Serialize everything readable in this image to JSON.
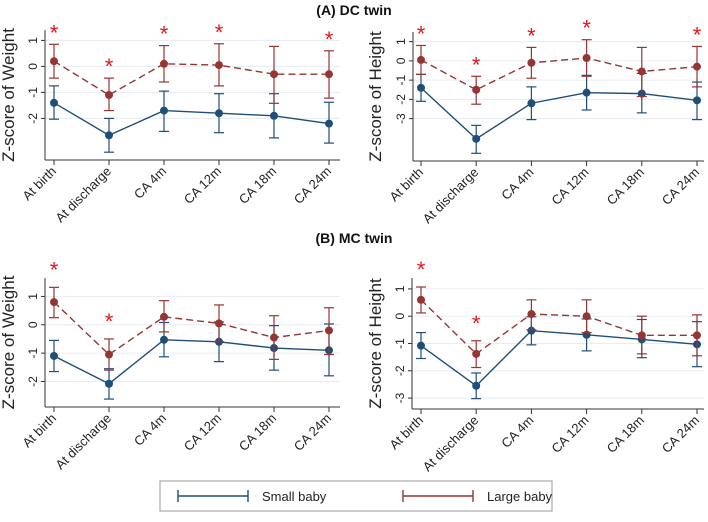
{
  "colors": {
    "small": "#1f4e79",
    "large": "#943634",
    "star": "#e8141b",
    "grid": "#e6ecf2"
  },
  "legend": [
    {
      "name": "Small baby",
      "style": "solid"
    },
    {
      "name": "Large baby",
      "style": "dashed"
    }
  ],
  "sections": [
    {
      "title": "(A) DC twin"
    },
    {
      "title": "(B) MC twin"
    }
  ],
  "chart_data": [
    {
      "type": "line",
      "section": "(A) DC twin",
      "ylabel": "Z-score of Weight",
      "ylim": [
        -3.6,
        1.4
      ],
      "yticks": [
        1,
        0,
        -1,
        -2
      ],
      "grid": true,
      "categories": [
        "At birth",
        "At discharge",
        "CA 4m",
        "CA 12m",
        "CA 18m",
        "CA 24m"
      ],
      "series": [
        {
          "name": "Small baby",
          "values": [
            -1.4,
            -2.65,
            -1.7,
            -1.8,
            -1.9,
            -2.2
          ],
          "ci_low": [
            -2.03,
            -3.3,
            -2.5,
            -2.55,
            -2.75,
            -2.95
          ],
          "ci_high": [
            -0.75,
            -2.0,
            -0.95,
            -1.05,
            -1.05,
            -1.38
          ]
        },
        {
          "name": "Large baby",
          "values": [
            0.2,
            -1.1,
            0.1,
            0.05,
            -0.3,
            -0.3
          ],
          "ci_low": [
            -0.45,
            -1.7,
            -0.6,
            -0.75,
            -1.42,
            -1.22
          ],
          "ci_high": [
            0.85,
            -0.45,
            0.8,
            0.87,
            0.77,
            0.6
          ]
        }
      ],
      "significant": [
        true,
        true,
        true,
        true,
        false,
        true
      ],
      "star": "*"
    },
    {
      "type": "line",
      "section": "(A) DC twin",
      "ylabel": "Z-score of Height",
      "ylim": [
        -5.2,
        1.5
      ],
      "yticks": [
        1,
        0,
        -1,
        -2,
        -3
      ],
      "grid": true,
      "categories": [
        "At birth",
        "At discharge",
        "CA 4m",
        "CA 12m",
        "CA 18m",
        "CA 24m"
      ],
      "series": [
        {
          "name": "Small baby",
          "values": [
            -1.4,
            -4.05,
            -2.2,
            -1.65,
            -1.7,
            -2.05
          ],
          "ci_low": [
            -2.1,
            -4.8,
            -3.05,
            -2.55,
            -2.7,
            -3.05
          ],
          "ci_high": [
            -0.7,
            -3.35,
            -1.35,
            -0.75,
            -0.65,
            -1.1
          ]
        },
        {
          "name": "Large baby",
          "values": [
            0.05,
            -1.5,
            -0.1,
            0.15,
            -0.55,
            -0.3
          ],
          "ci_low": [
            -0.7,
            -2.25,
            -0.9,
            -0.8,
            -1.85,
            -1.35
          ],
          "ci_high": [
            0.8,
            -0.8,
            0.7,
            1.1,
            0.7,
            0.75
          ]
        }
      ],
      "significant": [
        true,
        true,
        true,
        true,
        false,
        true
      ],
      "star": "*"
    },
    {
      "type": "line",
      "section": "(B) MC twin",
      "ylabel": "Z-score of Weight",
      "ylim": [
        -2.9,
        1.65
      ],
      "yticks": [
        1,
        0,
        -1,
        -2
      ],
      "grid": true,
      "categories": [
        "At birth",
        "At discharge",
        "CA 4m",
        "CA 12m",
        "CA 18m",
        "CA 24m"
      ],
      "series": [
        {
          "name": "Small baby",
          "values": [
            -1.1,
            -2.08,
            -0.53,
            -0.6,
            -0.82,
            -0.9
          ],
          "ci_low": [
            -1.65,
            -2.62,
            -1.13,
            -1.3,
            -1.6,
            -1.8
          ],
          "ci_high": [
            -0.55,
            -1.55,
            0.08,
            0.1,
            -0.03,
            0.03
          ]
        },
        {
          "name": "Large baby",
          "values": [
            0.8,
            -1.05,
            0.28,
            0.05,
            -0.45,
            -0.2
          ],
          "ci_low": [
            0.25,
            -1.6,
            -0.25,
            -0.6,
            -1.22,
            -1.05
          ],
          "ci_high": [
            1.32,
            -0.5,
            0.85,
            0.7,
            0.32,
            0.6
          ]
        }
      ],
      "significant": [
        true,
        true,
        false,
        false,
        false,
        false
      ],
      "star": "*"
    },
    {
      "type": "line",
      "section": "(B) MC twin",
      "ylabel": "Z-score of Height",
      "ylim": [
        -3.4,
        1.4
      ],
      "yticks": [
        1,
        0,
        -1,
        -2,
        -3
      ],
      "grid": true,
      "categories": [
        "At birth",
        "At discharge",
        "CA 4m",
        "CA 12m",
        "CA 18m",
        "CA 24m"
      ],
      "series": [
        {
          "name": "Small baby",
          "values": [
            -1.08,
            -2.55,
            -0.53,
            -0.68,
            -0.85,
            -1.03
          ],
          "ci_low": [
            -1.55,
            -3.02,
            -1.05,
            -1.27,
            -1.52,
            -1.85
          ],
          "ci_high": [
            -0.6,
            -2.08,
            -0.02,
            -0.1,
            -0.12,
            -0.2
          ]
        },
        {
          "name": "Large baby",
          "values": [
            0.6,
            -1.38,
            0.08,
            0.0,
            -0.7,
            -0.7
          ],
          "ci_low": [
            0.12,
            -1.88,
            -0.5,
            -0.6,
            -1.38,
            -1.45
          ],
          "ci_high": [
            1.07,
            -0.9,
            0.6,
            0.6,
            0.0,
            0.05
          ]
        }
      ],
      "significant": [
        true,
        true,
        false,
        false,
        false,
        false
      ],
      "star": "*"
    }
  ]
}
